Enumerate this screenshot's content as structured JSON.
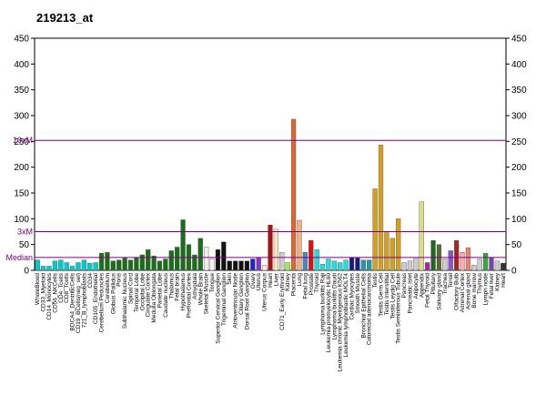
{
  "chart_data": {
    "type": "bar",
    "title": "219213_at",
    "categories": [
      "WholeBlood",
      "CD33_Myeloid",
      "CD14_Monocytes",
      "CD56_NKCells",
      "CD4_Tcells",
      "CD8_Tcells",
      "BDCA4_DentriticCells",
      "CD19_BCells(neg_sel)",
      "721_B_lymphoblasts",
      "CD34",
      "CD105_Endothelial",
      "Cerebellum Peduncles",
      "Cerebellum",
      "Globus Pallidus",
      "Pons",
      "Subthalamic Nucleus",
      "Spinal Cord",
      "Temporal Lobe",
      "Occipital Lobe",
      "Cingulate Cortex",
      "Medulla Oblongata",
      "Parietal Lobe",
      "Caudate nucleus",
      "Thalamus",
      "Fetal brain",
      "Hypothalamus",
      "Prefrontal Cortex",
      "Amygdala",
      "Whole Brain",
      "Skeletal Muscle",
      "Tongue",
      "Superior Cervical Ganglion",
      "Trigeminal Ganglion",
      "Skin",
      "Atrioventricular Node",
      "Ciliary Ganglion",
      "Dorsal Root Ganglion",
      "Ovary",
      "Uterus",
      "Uterus Corpus",
      "Heart",
      "Liver",
      "CD71_Early Erythroid",
      "Kidney",
      "Placenta",
      "Lung",
      "Fetal lung",
      "Prostate",
      "Thyroid",
      "Lymphoma burkitts Raji",
      "Leukemia promyelocytic HL60",
      "Lymphoma burkitts Daudi",
      "Leukemia chronic Myelogenous K562",
      "Leukemia lymphoblastic MOLT4",
      "Cardiac Myocytes",
      "Smooth Muscle",
      "Bronchial Epithelial Cells",
      "Colorectal adenocarcinoma",
      "Testis",
      "Testis Germ Cell",
      "Testis Interstitial",
      "Testis Leydig Cell",
      "Testis Seminiferous Tubule",
      "Pancreas",
      "Pancreatic Islet",
      "Adipocyte",
      "Appendix",
      "Fetal Thyroid",
      "Pituitary",
      "Salivary gland",
      "Trachea",
      "Tonsil",
      "Olfactory Bulb",
      "Adrenal Cortex",
      "Adrenal gland",
      "Bone marrow",
      "Thymus",
      "Lymph node",
      "Fetal liver",
      "Kidney",
      "Heart"
    ],
    "values": [
      20,
      8,
      8,
      18,
      20,
      15,
      8,
      15,
      20,
      14,
      15,
      33,
      35,
      18,
      20,
      24,
      20,
      25,
      30,
      40,
      28,
      18,
      22,
      38,
      45,
      98,
      50,
      30,
      62,
      45,
      22,
      40,
      55,
      18,
      18,
      18,
      18,
      22,
      24,
      10,
      88,
      80,
      35,
      15,
      293,
      97,
      35,
      58,
      40,
      12,
      22,
      18,
      15,
      20,
      25,
      24,
      20,
      20,
      158,
      243,
      75,
      62,
      100,
      15,
      18,
      25,
      133,
      15,
      58,
      50,
      22,
      38,
      58,
      35,
      44,
      10,
      22,
      33,
      25,
      18,
      14
    ],
    "colors": [
      "#00cccc",
      "#00cccc",
      "#00cccc",
      "#00cccc",
      "#00cccc",
      "#00cccc",
      "#00cccc",
      "#00cccc",
      "#00cccc",
      "#00cccc",
      "#00cccc",
      "#1a6e1a",
      "#1a6e1a",
      "#1a6e1a",
      "#1a6e1a",
      "#1a6e1a",
      "#1a6e1a",
      "#1a6e1a",
      "#1a6e1a",
      "#1a6e1a",
      "#1a6e1a",
      "#1a6e1a",
      "#1a6e1a",
      "#1a6e1a",
      "#1a6e1a",
      "#1a6e1a",
      "#1a6e1a",
      "#1a6e1a",
      "#1a6e1a",
      "#f4f0f0",
      "#f4f0f0",
      "#111111",
      "#111111",
      "#111111",
      "#111111",
      "#111111",
      "#111111",
      "#2222cc",
      "#8833cc",
      "#f4f0f0",
      "#aa1111",
      "#f8e4c0",
      "#cccccc",
      "#99ee55",
      "#dd6633",
      "#f5b080",
      "#4488cc",
      "#dd1111",
      "#22dddd",
      "#22dddd",
      "#22dddd",
      "#22dddd",
      "#22dddd",
      "#22dddd",
      "#1a1a80",
      "#1a1a80",
      "#2299aa",
      "#2299aa",
      "#d4a020",
      "#d4a020",
      "#d4a020",
      "#d4a020",
      "#d4a020",
      "#cccccc",
      "#cccccc",
      "#cccccc",
      "#dddd88",
      "#aa22aa",
      "#226622",
      "#556b2f",
      "#cccccc",
      "#8855cc",
      "#aa2222",
      "#ffaaaa",
      "#f08070",
      "#cccccc",
      "#cccccc",
      "#33aa33",
      "#7744aa",
      "#cccccc",
      "#333333"
    ],
    "ylim": [
      0,
      450
    ],
    "yticks": [
      0,
      50,
      100,
      150,
      200,
      250,
      300,
      350,
      400,
      450
    ],
    "y2lim": [
      0,
      450
    ],
    "y2ticks": [
      0,
      50,
      100,
      150,
      200,
      250,
      300,
      350,
      400,
      450
    ],
    "reference_lines": [
      {
        "label": "10xM",
        "value": 252
      },
      {
        "label": "3xM",
        "value": 75
      },
      {
        "label": "Median",
        "value": 25
      }
    ],
    "reference_color": "#800080"
  }
}
